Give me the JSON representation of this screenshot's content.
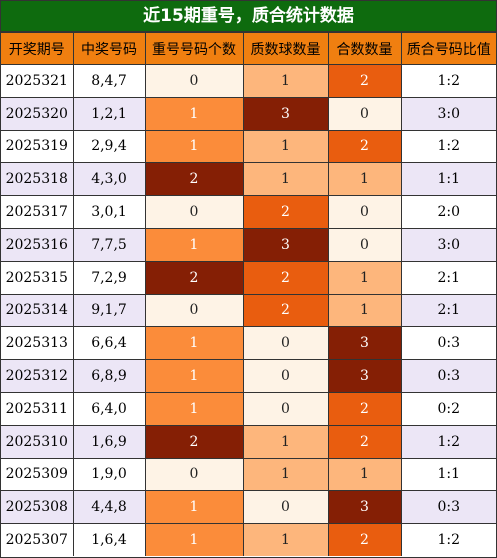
{
  "title": "近15期重号，质合统计数据",
  "colors": {
    "title_bg": "#0e6b0e",
    "header_bg": "#f07f10",
    "row_even": "#ffffff",
    "row_odd": "#ece6f6",
    "level_0": "#fef3e6",
    "level_1": "#fb8c3a",
    "level_2": "#851f05",
    "level_3": "#fdb67c",
    "level_4": "#e95d0f"
  },
  "columns": [
    "开奖期号",
    "中奖号码",
    "重号号码个数",
    "质数球数量",
    "合数数量",
    "质合号码比值"
  ],
  "rows": [
    {
      "period": "2025321",
      "numbers": "8,4,7",
      "repeat": "0",
      "prime": "1",
      "composite": "2",
      "ratio": "1:2",
      "rc": "c0",
      "pc": "c3",
      "cc": "c4"
    },
    {
      "period": "2025320",
      "numbers": "1,2,1",
      "repeat": "1",
      "prime": "3",
      "composite": "0",
      "ratio": "3:0",
      "rc": "c1",
      "pc": "c2",
      "cc": "c0"
    },
    {
      "period": "2025319",
      "numbers": "2,9,4",
      "repeat": "1",
      "prime": "1",
      "composite": "2",
      "ratio": "1:2",
      "rc": "c1",
      "pc": "c3",
      "cc": "c4"
    },
    {
      "period": "2025318",
      "numbers": "4,3,0",
      "repeat": "2",
      "prime": "1",
      "composite": "1",
      "ratio": "1:1",
      "rc": "c2",
      "pc": "c3",
      "cc": "c3"
    },
    {
      "period": "2025317",
      "numbers": "3,0,1",
      "repeat": "0",
      "prime": "2",
      "composite": "0",
      "ratio": "2:0",
      "rc": "c0",
      "pc": "c4",
      "cc": "c0"
    },
    {
      "period": "2025316",
      "numbers": "7,7,5",
      "repeat": "1",
      "prime": "3",
      "composite": "0",
      "ratio": "3:0",
      "rc": "c1",
      "pc": "c2",
      "cc": "c0"
    },
    {
      "period": "2025315",
      "numbers": "7,2,9",
      "repeat": "2",
      "prime": "2",
      "composite": "1",
      "ratio": "2:1",
      "rc": "c2",
      "pc": "c4",
      "cc": "c3"
    },
    {
      "period": "2025314",
      "numbers": "9,1,7",
      "repeat": "0",
      "prime": "2",
      "composite": "1",
      "ratio": "2:1",
      "rc": "c0",
      "pc": "c4",
      "cc": "c3"
    },
    {
      "period": "2025313",
      "numbers": "6,6,4",
      "repeat": "1",
      "prime": "0",
      "composite": "3",
      "ratio": "0:3",
      "rc": "c1",
      "pc": "c0",
      "cc": "c2"
    },
    {
      "period": "2025312",
      "numbers": "6,8,9",
      "repeat": "1",
      "prime": "0",
      "composite": "3",
      "ratio": "0:3",
      "rc": "c1",
      "pc": "c0",
      "cc": "c2"
    },
    {
      "period": "2025311",
      "numbers": "6,4,0",
      "repeat": "1",
      "prime": "0",
      "composite": "2",
      "ratio": "0:2",
      "rc": "c1",
      "pc": "c0",
      "cc": "c4"
    },
    {
      "period": "2025310",
      "numbers": "1,6,9",
      "repeat": "2",
      "prime": "1",
      "composite": "2",
      "ratio": "1:2",
      "rc": "c2",
      "pc": "c3",
      "cc": "c4"
    },
    {
      "period": "2025309",
      "numbers": "1,9,0",
      "repeat": "0",
      "prime": "1",
      "composite": "1",
      "ratio": "1:1",
      "rc": "c0",
      "pc": "c3",
      "cc": "c3"
    },
    {
      "period": "2025308",
      "numbers": "4,4,8",
      "repeat": "1",
      "prime": "0",
      "composite": "3",
      "ratio": "0:3",
      "rc": "c1",
      "pc": "c0",
      "cc": "c2"
    },
    {
      "period": "2025307",
      "numbers": "1,6,4",
      "repeat": "1",
      "prime": "1",
      "composite": "2",
      "ratio": "1:2",
      "rc": "c1",
      "pc": "c3",
      "cc": "c4"
    }
  ]
}
